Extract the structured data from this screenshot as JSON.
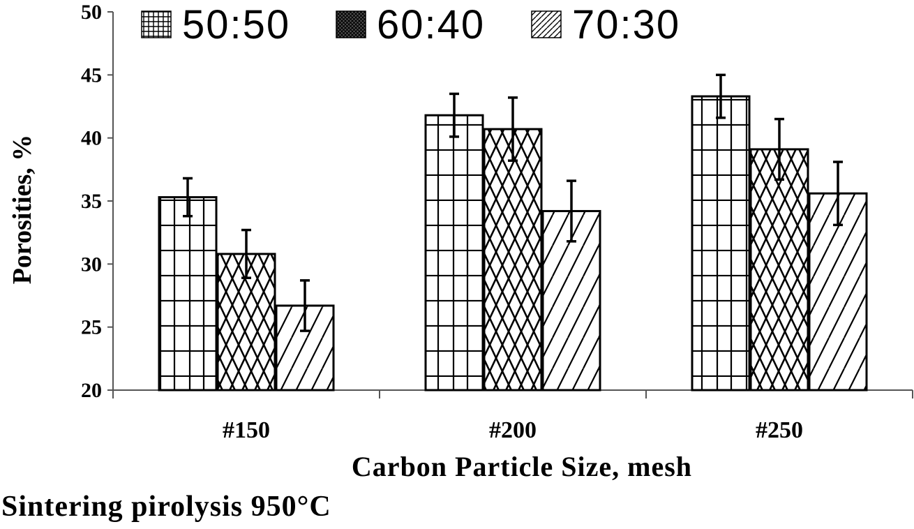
{
  "chart_data": {
    "type": "bar",
    "categories": [
      "#150",
      "#200",
      "#250"
    ],
    "series": [
      {
        "name": "50:50",
        "values": [
          35.3,
          41.8,
          43.3
        ],
        "errors": [
          1.5,
          1.7,
          1.7
        ]
      },
      {
        "name": "60:40",
        "values": [
          30.8,
          40.7,
          39.1
        ],
        "errors": [
          1.9,
          2.5,
          2.4
        ]
      },
      {
        "name": "70:30",
        "values": [
          26.7,
          34.2,
          35.6
        ],
        "errors": [
          2.0,
          2.4,
          2.5
        ]
      }
    ],
    "title": "",
    "xlabel": "Carbon Particle Size, mesh",
    "ylabel": "Porosities, %",
    "ylim": [
      20,
      50
    ],
    "yticks": [
      20,
      25,
      30,
      35,
      40,
      45,
      50
    ],
    "legend_position": "top"
  },
  "caption": "Sintering pirolysis 950°C"
}
